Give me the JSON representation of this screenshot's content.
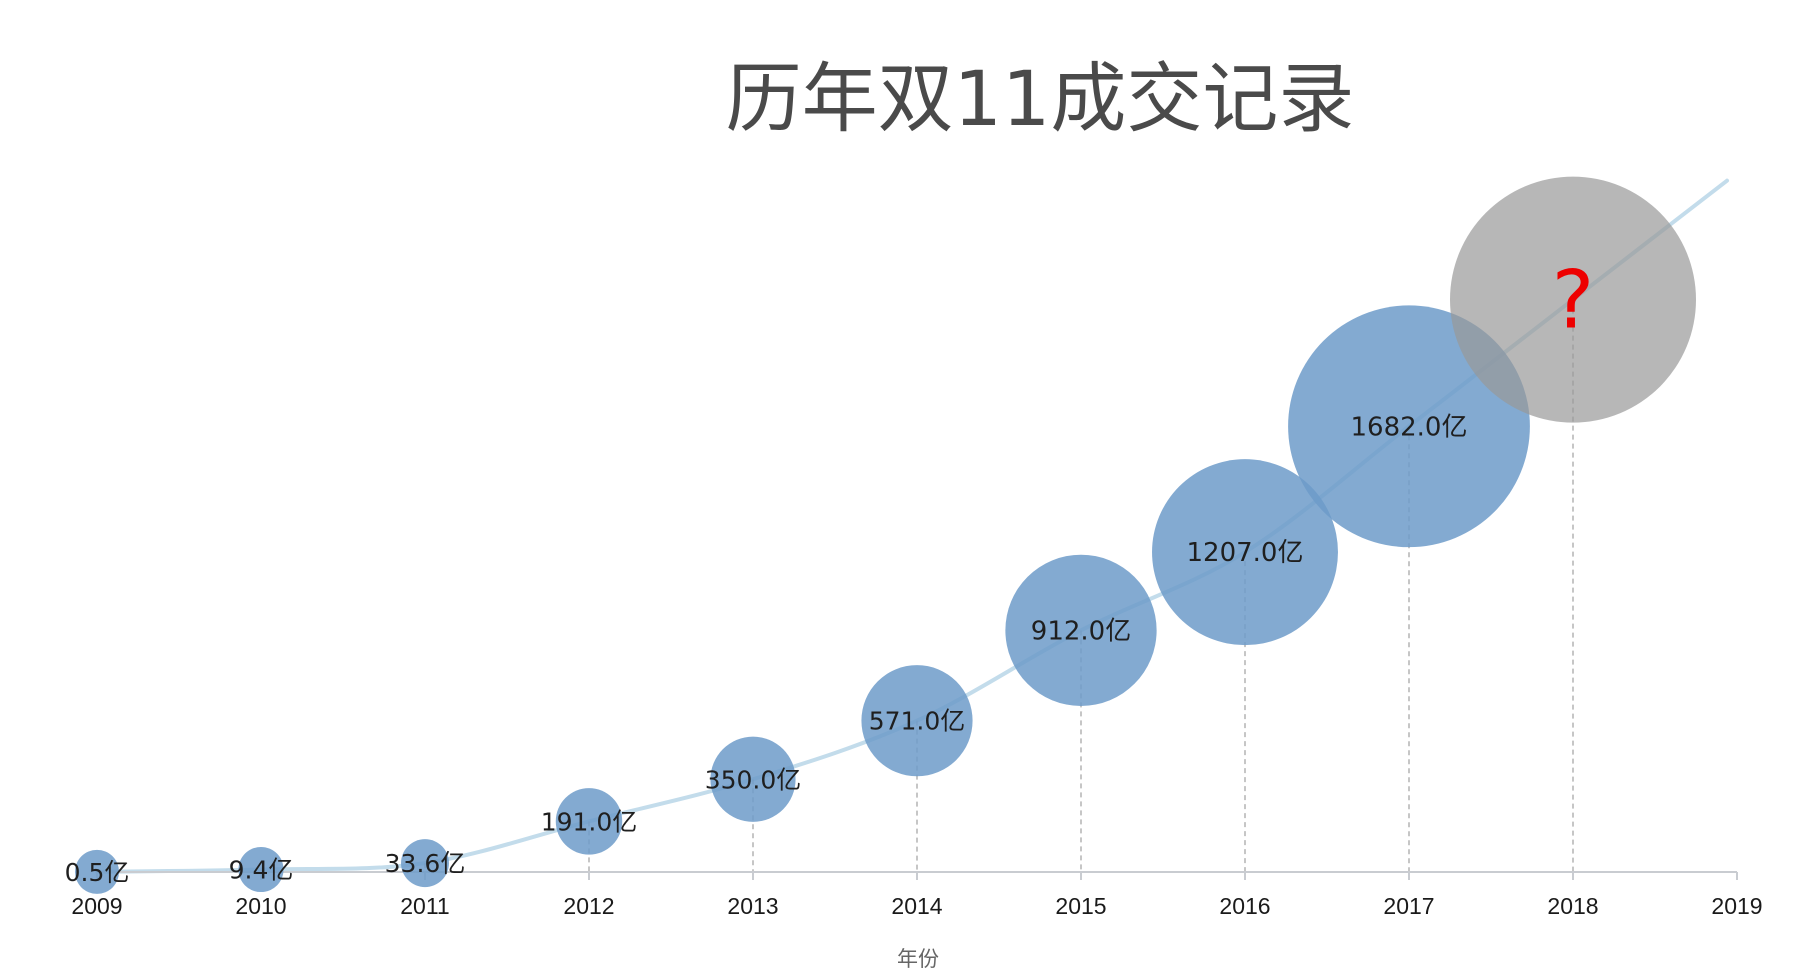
{
  "chart_data": {
    "type": "scatter",
    "title": "历年双11成交记录",
    "xlabel": "年份",
    "ylabel": "",
    "x_ticks": [
      "2009",
      "2010",
      "2011",
      "2012",
      "2013",
      "2014",
      "2015",
      "2016",
      "2017",
      "2018",
      "2019"
    ],
    "xlim": [
      2009,
      2019
    ],
    "ylim": [
      0,
      2800
    ],
    "unit": "亿",
    "points": [
      {
        "year": 2009,
        "value": 0.5,
        "label": "0.5亿"
      },
      {
        "year": 2010,
        "value": 9.4,
        "label": "9.4亿"
      },
      {
        "year": 2011,
        "value": 33.6,
        "label": "33.6亿"
      },
      {
        "year": 2012,
        "value": 191.0,
        "label": "191.0亿"
      },
      {
        "year": 2013,
        "value": 350.0,
        "label": "350.0亿"
      },
      {
        "year": 2014,
        "value": 571.0,
        "label": "571.0亿"
      },
      {
        "year": 2015,
        "value": 912.0,
        "label": "912.0亿"
      },
      {
        "year": 2016,
        "value": 1207.0,
        "label": "1207.0亿"
      },
      {
        "year": 2017,
        "value": 1682.0,
        "label": "1682.0亿"
      }
    ],
    "prediction": {
      "year": 2018,
      "value": 2160,
      "label": "?"
    },
    "trend_line": true,
    "grid": false,
    "legend": "none",
    "colors": {
      "bubble": "#6d9bc9",
      "prediction": "#999999",
      "trend": "#c3dceb",
      "question": "#ee0000"
    }
  }
}
